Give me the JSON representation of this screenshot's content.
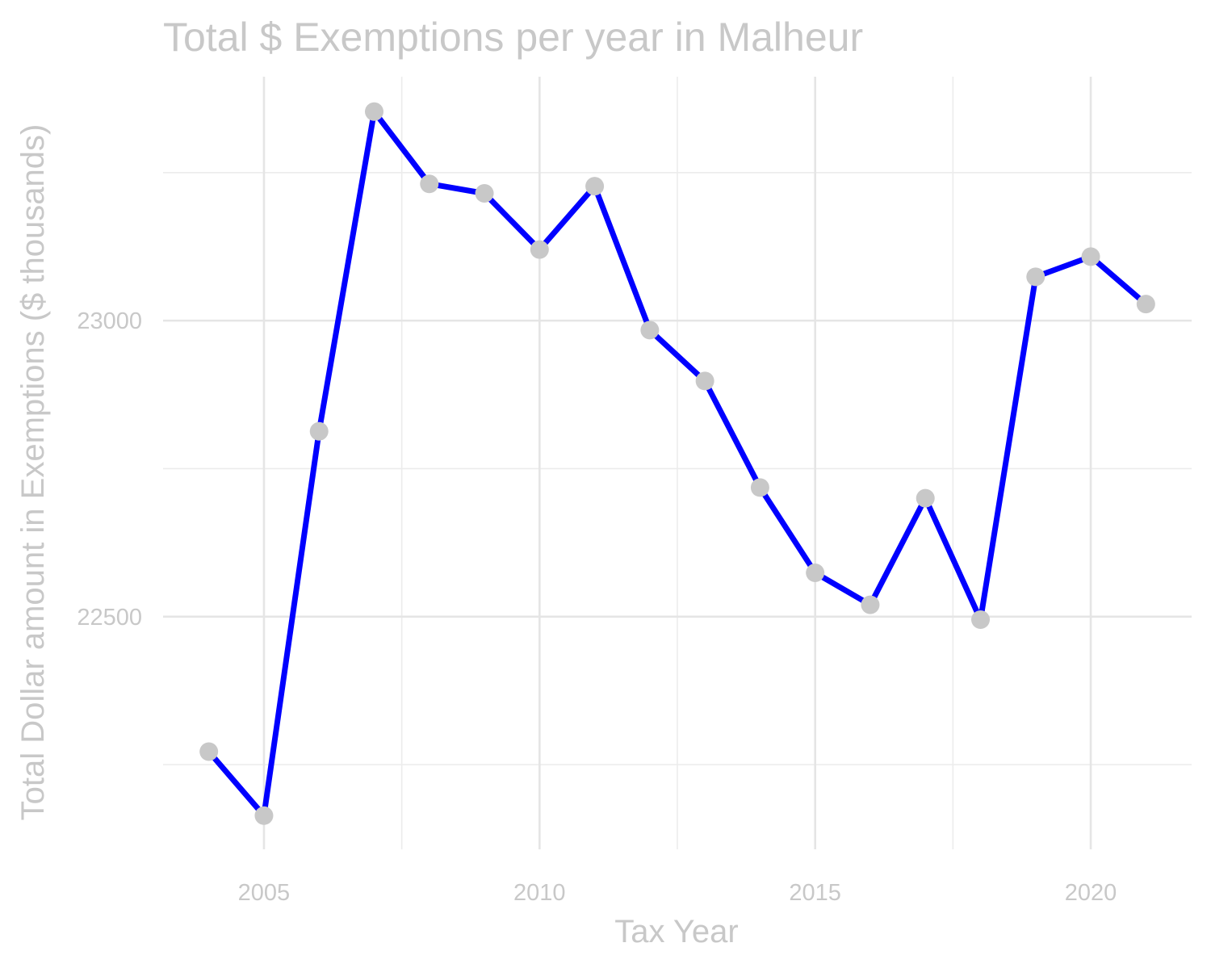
{
  "chart_data": {
    "type": "line",
    "title": "Total $ Exemptions per year in Malheur",
    "xlabel": "Tax Year",
    "ylabel": "Total Dollar amount in Exemptions ($ thousands)",
    "x": [
      2004,
      2005,
      2006,
      2007,
      2008,
      2009,
      2010,
      2011,
      2012,
      2013,
      2014,
      2015,
      2016,
      2017,
      2018,
      2019,
      2020,
      2021
    ],
    "series": [
      {
        "values": [
          22272,
          22164,
          22813,
          23353,
          23231,
          23215,
          23120,
          23227,
          22984,
          22898,
          22718,
          22574,
          22520,
          22700,
          22495,
          23074,
          23108,
          23028
        ]
      }
    ],
    "xlim": [
      2003.17,
      2021.83
    ],
    "ylim": [
      22107,
      23412
    ],
    "x_ticks": [
      "2005",
      "2010",
      "2015",
      "2020"
    ],
    "x_tick_values": [
      2005,
      2010,
      2015,
      2020
    ],
    "y_ticks": [
      "22500",
      "23000"
    ],
    "y_tick_values": [
      22500,
      23000
    ],
    "grid": true,
    "line_color": "#0000ff",
    "point_color": "#c8c8c8",
    "text_color": "#c8c8c8",
    "grid_color": "#e5e5e5"
  }
}
